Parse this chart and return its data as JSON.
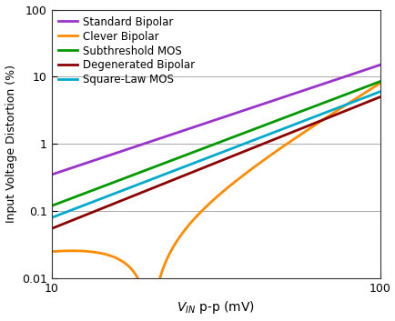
{
  "title": "",
  "xlabel": "V_IN p-p (mV)",
  "ylabel": "Input Voltage Distortion (%)",
  "xlim": [
    10,
    100
  ],
  "ylim": [
    0.01,
    100
  ],
  "curves": {
    "Standard Bipolar": {
      "color": "#9933CC",
      "y_at_10": 0.35,
      "y_at_100": 15.0,
      "type": "power"
    },
    "Clever Bipolar": {
      "color": "#FF8C00",
      "x_null": 20.0,
      "y_at_10": 0.045,
      "y_at_100": 8.0,
      "type": "clever"
    },
    "Subthreshold MOS": {
      "color": "#009900",
      "y_at_10": 0.12,
      "y_at_100": 8.5,
      "type": "power"
    },
    "Degenerated Bipolar": {
      "color": "#8B0000",
      "y_at_10": 0.055,
      "y_at_100": 5.0,
      "type": "power"
    },
    "Square-Law MOS": {
      "color": "#00AACC",
      "y_at_10": 0.08,
      "y_at_100": 6.0,
      "type": "power"
    }
  },
  "legend_order": [
    "Standard Bipolar",
    "Clever Bipolar",
    "Subthreshold MOS",
    "Degenerated Bipolar",
    "Square-Law MOS"
  ],
  "grid_color": "#AAAAAA",
  "background_color": "#FFFFFF",
  "line_width": 2.0,
  "legend_fontsize": 8.5,
  "axis_fontsize": 10,
  "tick_fontsize": 9
}
